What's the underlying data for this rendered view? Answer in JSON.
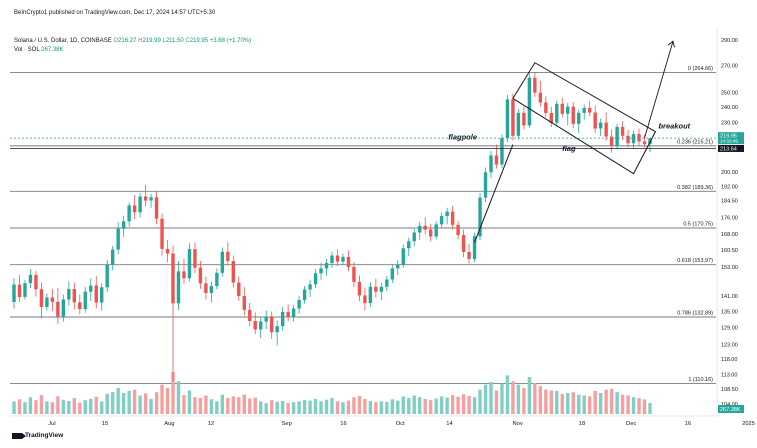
{
  "header": {
    "published": "BeInCrypto1 published on TradingView.com, Dec 17, 2024 14:57 UTC+5:30",
    "symbol": "Solana / U.S. Dollar, 1D, COINBASE",
    "o_label": "O",
    "o_val": "216.27",
    "h_label": "H",
    "h_val": "219.99",
    "l_label": "L",
    "l_val": "211.50",
    "c_label": "C",
    "c_val": "219.95",
    "change": "+3.68 (+1.70%)",
    "vol_label": "Vol · SOL",
    "vol_val": "267.38K"
  },
  "footer": {
    "brand": "TradingView"
  },
  "colors": {
    "up": "#26a69a",
    "down": "#ef5350",
    "fib": "#787b86",
    "last_price": "#131722"
  },
  "chart_data": {
    "type": "candlestick",
    "y_axis": {
      "ticks": [
        290.0,
        270.0,
        250.0,
        240.0,
        230.0,
        200.0,
        192.0,
        184.5,
        176.0,
        168.0,
        160.5,
        153.0,
        141.0,
        135.0,
        129.0,
        123.0,
        118.0,
        113.0,
        108.5,
        104.0
      ],
      "tick_labels": [
        "290.00",
        "270.00",
        "250.00",
        "240.00",
        "230.00",
        "200.00",
        "192.00",
        "184.50",
        "176.00",
        "168.00",
        "160.50",
        "153.00",
        "141.00",
        "135.00",
        "129.00",
        "123.00",
        "118.00",
        "113.00",
        "108.50",
        "104.00"
      ],
      "scale": "log"
    },
    "x_axis": {
      "labels": [
        "Jul",
        "15",
        "Aug",
        "12",
        "Sep",
        "16",
        "Oct",
        "14",
        "Nov",
        "18",
        "Dec",
        "16",
        "2025"
      ]
    },
    "price_badges": [
      {
        "value": 219.95,
        "text": "219.95",
        "sub": "14:32:46",
        "color": "#26a69a"
      },
      {
        "value": 213.64,
        "text": "213.64",
        "color": "#131722"
      }
    ],
    "volume_badge": {
      "text": "267.38K",
      "color": "#26a69a"
    },
    "fib_levels": [
      {
        "value": 264.66,
        "label": "0 (264.66)"
      },
      {
        "value": 215.21,
        "label": "0.236 (215.21)"
      },
      {
        "value": 189.36,
        "label": "0.382 (189.36)"
      },
      {
        "value": 170.75,
        "label": "0.5 (170.75)"
      },
      {
        "value": 153.97,
        "label": "0.618 (153.97)"
      },
      {
        "value": 132.89,
        "label": "0.786 (132.89)"
      },
      {
        "value": 110.16,
        "label": "1 (110.16)"
      }
    ],
    "annotations": [
      {
        "text": "flagpole"
      },
      {
        "text": "flag"
      },
      {
        "text": "breakout"
      }
    ],
    "candles": [
      [
        138.6,
        148.2,
        136.0,
        145.6
      ],
      [
        145.6,
        149.6,
        138.6,
        140.6
      ],
      [
        140.6,
        147.5,
        139.6,
        146.2
      ],
      [
        146.2,
        152.0,
        144.1,
        149.6
      ],
      [
        149.6,
        151.4,
        140.8,
        143.7
      ],
      [
        143.7,
        146.5,
        132.3,
        136.7
      ],
      [
        136.7,
        142.0,
        135.3,
        140.4
      ],
      [
        140.4,
        143.7,
        135.1,
        138.7
      ],
      [
        138.7,
        144.2,
        130.3,
        133.1
      ],
      [
        133.1,
        141.6,
        131.2,
        139.6
      ],
      [
        139.6,
        146.8,
        137.2,
        143.8
      ],
      [
        143.8,
        146.5,
        135.8,
        138.5
      ],
      [
        138.5,
        141.6,
        133.9,
        135.9
      ],
      [
        135.9,
        144.6,
        134.5,
        142.7
      ],
      [
        142.7,
        148.2,
        139.0,
        145.2
      ],
      [
        145.2,
        149.1,
        136.1,
        138.4
      ],
      [
        138.4,
        146.2,
        135.4,
        144.5
      ],
      [
        144.5,
        156.2,
        142.5,
        154.1
      ],
      [
        154.1,
        162.3,
        151.6,
        160.7
      ],
      [
        160.7,
        173.5,
        158.6,
        170.4
      ],
      [
        170.4,
        176.8,
        166.4,
        174.0
      ],
      [
        174.0,
        183.6,
        171.3,
        182.0
      ],
      [
        182.0,
        187.4,
        175.0,
        178.5
      ],
      [
        178.5,
        188.5,
        175.9,
        186.6
      ],
      [
        186.6,
        193.0,
        181.6,
        184.5
      ],
      [
        184.5,
        188.0,
        180.7,
        186.2
      ],
      [
        186.2,
        189.6,
        172.5,
        175.3
      ],
      [
        175.3,
        177.8,
        158.0,
        161.0
      ],
      [
        161.0,
        165.0,
        155.0,
        158.9
      ],
      [
        158.9,
        162.4,
        111.0,
        138.1
      ],
      [
        138.1,
        155.6,
        135.6,
        151.1
      ],
      [
        151.1,
        156.7,
        145.9,
        148.2
      ],
      [
        148.2,
        163.6,
        146.9,
        160.9
      ],
      [
        160.9,
        163.8,
        150.4,
        152.7
      ],
      [
        152.7,
        155.6,
        143.9,
        146.1
      ],
      [
        146.1,
        148.9,
        139.6,
        142.2
      ],
      [
        142.2,
        146.8,
        138.4,
        145.0
      ],
      [
        145.0,
        152.4,
        143.7,
        150.5
      ],
      [
        150.5,
        161.6,
        148.9,
        159.7
      ],
      [
        159.7,
        164.0,
        153.7,
        155.6
      ],
      [
        155.6,
        158.0,
        144.4,
        146.4
      ],
      [
        146.4,
        149.0,
        139.1,
        141.0
      ],
      [
        141.0,
        144.5,
        133.5,
        135.6
      ],
      [
        135.6,
        138.3,
        129.5,
        131.4
      ],
      [
        131.4,
        134.6,
        126.6,
        128.3
      ],
      [
        128.3,
        133.0,
        125.2,
        131.2
      ],
      [
        131.2,
        135.4,
        128.5,
        133.0
      ],
      [
        133.0,
        135.0,
        124.9,
        127.3
      ],
      [
        127.3,
        131.6,
        122.6,
        129.5
      ],
      [
        129.5,
        136.6,
        127.9,
        134.8
      ],
      [
        134.8,
        137.7,
        131.3,
        132.8
      ],
      [
        132.8,
        137.5,
        131.2,
        136.1
      ],
      [
        136.1,
        140.9,
        134.2,
        139.4
      ],
      [
        139.4,
        145.0,
        138.0,
        143.6
      ],
      [
        143.6,
        147.6,
        140.6,
        145.7
      ],
      [
        145.7,
        152.1,
        144.2,
        150.3
      ],
      [
        150.3,
        154.9,
        147.6,
        152.4
      ],
      [
        152.4,
        156.5,
        149.3,
        154.7
      ],
      [
        154.7,
        159.7,
        152.6,
        158.0
      ],
      [
        158.0,
        160.8,
        153.4,
        155.3
      ],
      [
        155.3,
        158.8,
        154.0,
        157.4
      ],
      [
        157.4,
        160.3,
        151.1,
        153.0
      ],
      [
        153.0,
        155.2,
        144.6,
        146.7
      ],
      [
        146.7,
        149.4,
        138.9,
        141.2
      ],
      [
        141.2,
        144.3,
        135.4,
        138.2
      ],
      [
        138.2,
        146.5,
        136.7,
        144.7
      ],
      [
        144.7,
        148.0,
        140.4,
        142.7
      ],
      [
        142.7,
        146.3,
        139.4,
        144.7
      ],
      [
        144.7,
        149.2,
        143.0,
        147.7
      ],
      [
        147.7,
        154.0,
        146.2,
        152.4
      ],
      [
        152.4,
        156.0,
        149.5,
        154.0
      ],
      [
        154.0,
        163.0,
        152.6,
        161.3
      ],
      [
        161.3,
        166.2,
        157.8,
        164.5
      ],
      [
        164.5,
        170.3,
        162.2,
        168.6
      ],
      [
        168.6,
        173.8,
        165.1,
        171.8
      ],
      [
        171.8,
        176.0,
        167.7,
        170.0
      ],
      [
        170.0,
        172.8,
        164.4,
        166.7
      ],
      [
        166.7,
        174.0,
        165.3,
        172.5
      ],
      [
        172.5,
        178.4,
        170.8,
        176.6
      ],
      [
        176.6,
        180.8,
        172.5,
        178.8
      ],
      [
        178.8,
        181.7,
        170.0,
        172.3
      ],
      [
        172.3,
        174.3,
        165.4,
        167.4
      ],
      [
        167.4,
        170.0,
        157.3,
        159.6
      ],
      [
        159.6,
        163.2,
        154.5,
        156.5
      ],
      [
        156.5,
        168.5,
        155.0,
        166.8
      ],
      [
        166.8,
        188.4,
        165.1,
        186.0
      ],
      [
        186.0,
        202.5,
        183.7,
        199.8
      ],
      [
        199.8,
        212.3,
        196.6,
        209.5
      ],
      [
        209.5,
        216.0,
        201.9,
        204.2
      ],
      [
        204.2,
        222.4,
        202.1,
        220.0
      ],
      [
        220.0,
        248.6,
        217.6,
        245.3
      ],
      [
        245.3,
        249.4,
        218.5,
        221.4
      ],
      [
        221.4,
        238.6,
        219.0,
        236.2
      ],
      [
        236.2,
        240.5,
        225.3,
        228.0
      ],
      [
        228.0,
        263.8,
        226.5,
        260.7
      ],
      [
        260.7,
        264.6,
        247.1,
        250.0
      ],
      [
        250.0,
        258.5,
        240.6,
        243.2
      ],
      [
        243.2,
        247.5,
        233.5,
        236.1
      ],
      [
        236.1,
        240.1,
        226.9,
        229.7
      ],
      [
        229.7,
        244.6,
        228.0,
        242.3
      ],
      [
        242.3,
        246.2,
        233.2,
        235.6
      ],
      [
        235.6,
        242.8,
        228.0,
        240.4
      ],
      [
        240.4,
        243.4,
        226.3,
        229.0
      ],
      [
        229.0,
        238.5,
        223.1,
        236.2
      ],
      [
        236.2,
        241.8,
        231.7,
        239.5
      ],
      [
        239.5,
        244.1,
        234.0,
        236.4
      ],
      [
        236.4,
        241.1,
        223.3,
        226.0
      ],
      [
        226.0,
        232.4,
        221.3,
        229.8
      ],
      [
        229.8,
        236.6,
        218.3,
        220.9
      ],
      [
        220.9,
        225.5,
        211.2,
        215.2
      ],
      [
        215.2,
        229.1,
        213.2,
        227.0
      ],
      [
        227.0,
        230.7,
        218.8,
        221.4
      ],
      [
        221.4,
        225.1,
        214.4,
        216.8
      ],
      [
        216.8,
        224.7,
        213.5,
        222.5
      ],
      [
        222.5,
        226.0,
        215.5,
        217.9
      ],
      [
        217.9,
        222.0,
        214.3,
        216.3
      ],
      [
        216.3,
        219.99,
        211.5,
        219.95
      ]
    ],
    "volumes": [
      0.3,
      0.35,
      0.28,
      0.4,
      0.33,
      0.45,
      0.3,
      0.28,
      0.42,
      0.34,
      0.31,
      0.38,
      0.27,
      0.33,
      0.36,
      0.41,
      0.3,
      0.48,
      0.52,
      0.62,
      0.5,
      0.55,
      0.58,
      0.44,
      0.49,
      0.36,
      0.52,
      0.7,
      0.62,
      1.0,
      0.78,
      0.45,
      0.56,
      0.4,
      0.38,
      0.44,
      0.35,
      0.3,
      0.46,
      0.38,
      0.42,
      0.4,
      0.46,
      0.37,
      0.39,
      0.3,
      0.26,
      0.33,
      0.29,
      0.31,
      0.26,
      0.28,
      0.3,
      0.33,
      0.32,
      0.36,
      0.3,
      0.34,
      0.38,
      0.3,
      0.28,
      0.32,
      0.4,
      0.43,
      0.36,
      0.31,
      0.28,
      0.3,
      0.29,
      0.35,
      0.32,
      0.42,
      0.38,
      0.44,
      0.4,
      0.36,
      0.33,
      0.37,
      0.42,
      0.39,
      0.45,
      0.41,
      0.47,
      0.43,
      0.4,
      0.58,
      0.7,
      0.76,
      0.56,
      0.72,
      0.92,
      0.78,
      0.7,
      0.62,
      0.88,
      0.74,
      0.66,
      0.58,
      0.56,
      0.55,
      0.48,
      0.5,
      0.52,
      0.46,
      0.44,
      0.42,
      0.55,
      0.5,
      0.58,
      0.6,
      0.52,
      0.46,
      0.44,
      0.4,
      0.38,
      0.35,
      0.26
    ]
  }
}
